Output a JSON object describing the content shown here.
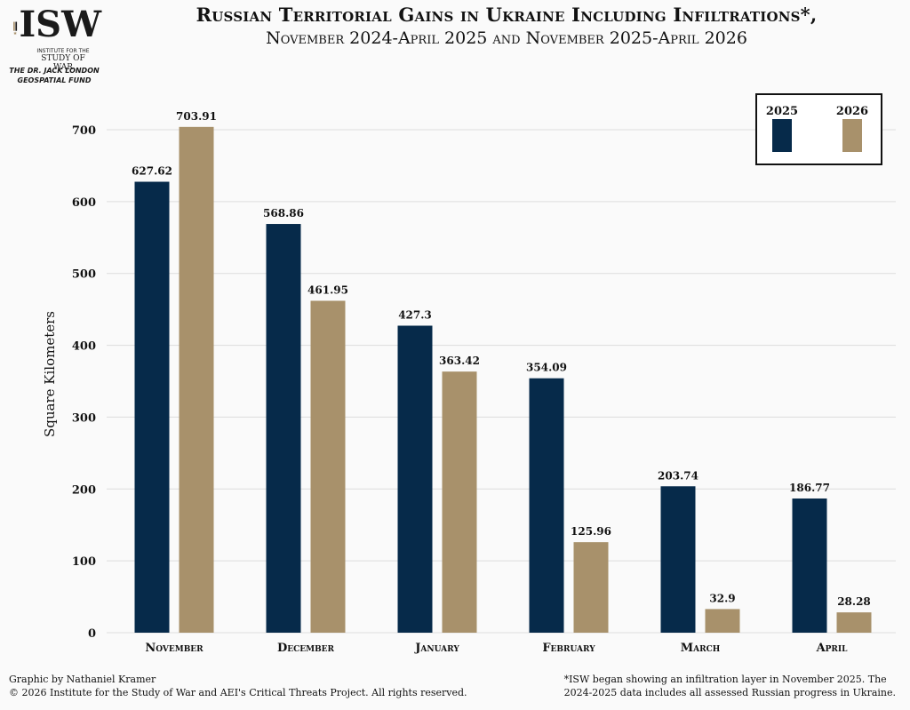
{
  "header": {
    "logo_text": "ISW",
    "logo_sub_line1": "INSTITUTE FOR THE",
    "logo_sub_line2": "STUDY OF WAR",
    "fund_line1": "THE DR. JACK LONDON",
    "fund_line2": "GEOSPATIAL FUND",
    "title": "Russian Territorial Gains in Ukraine Including Infiltrations*,",
    "subtitle": "November 2024-April 2025 and November 2025-April 2026"
  },
  "colors": {
    "series_2025": "#062a4a",
    "series_2026": "#a8916b",
    "grid": "#dddddd",
    "logo_gold": "#a8916b"
  },
  "chart_data": {
    "type": "bar",
    "ylabel": "Square Kilometers",
    "xlabel": "",
    "ylim": [
      0,
      700
    ],
    "yticks": [
      0,
      100,
      200,
      300,
      400,
      500,
      600,
      700
    ],
    "grid": true,
    "legend_position": "top-right",
    "categories": [
      "November",
      "December",
      "January",
      "February",
      "March",
      "April"
    ],
    "series": [
      {
        "name": "2025",
        "values": [
          627.62,
          568.86,
          427.3,
          354.09,
          203.74,
          186.77
        ]
      },
      {
        "name": "2026",
        "values": [
          703.91,
          461.95,
          363.42,
          125.96,
          32.9,
          28.28
        ]
      }
    ]
  },
  "footer": {
    "credit_line1": "Graphic by Nathaniel Kramer",
    "credit_line2": "© 2026 Institute for the Study of War and AEI's Critical Threats Project. All rights reserved.",
    "note_line1": "*ISW began showing an infiltration layer in November 2025.  The",
    "note_line2": "2024-2025 data includes all assessed Russian progress in Ukraine."
  }
}
